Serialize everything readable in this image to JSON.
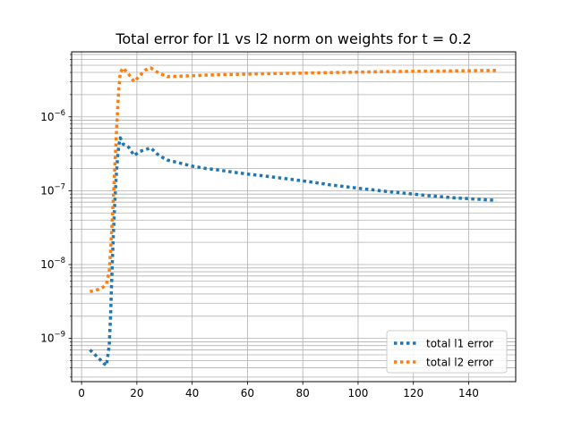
{
  "chart_data": {
    "type": "line",
    "title": "Total error for l1 vs l2 norm on weights for t = 0.2",
    "xlabel": "",
    "ylabel": "",
    "xlim": [
      -3.6,
      157
    ],
    "ylim": [
      2.6e-10,
      7.6e-06
    ],
    "yscale": "log",
    "grid": true,
    "grid_minor": true,
    "legend_position": "lower-right",
    "x_ticks": [
      0,
      20,
      40,
      60,
      80,
      100,
      120,
      140
    ],
    "x_tick_labels": [
      "0",
      "20",
      "40",
      "60",
      "80",
      "100",
      "120",
      "140"
    ],
    "y_ticks": [
      1e-09,
      1e-08,
      1e-07,
      1e-06
    ],
    "y_tick_labels": [
      {
        "base": "10",
        "exp": "−9"
      },
      {
        "base": "10",
        "exp": "−8"
      },
      {
        "base": "10",
        "exp": "−7"
      },
      {
        "base": "10",
        "exp": "−6"
      }
    ],
    "series": [
      {
        "name": "total l1 error",
        "color": "#1f77b4",
        "x": [
          3,
          6,
          8,
          9,
          10,
          10.5,
          11,
          11.5,
          12,
          12.5,
          13,
          13.5,
          14,
          15,
          17,
          19,
          21,
          23,
          25,
          28,
          31,
          35,
          40,
          45,
          50,
          55,
          60,
          65,
          70,
          75,
          80,
          85,
          90,
          95,
          100,
          105,
          110,
          115,
          120,
          125,
          130,
          135,
          140,
          145,
          150
        ],
        "y": [
          7e-10,
          5.5e-10,
          4.6e-10,
          4.3e-10,
          8e-10,
          2e-09,
          8e-09,
          2.5e-08,
          7e-08,
          1.5e-07,
          2.8e-07,
          4.2e-07,
          5.2e-07,
          4.3e-07,
          3.9e-07,
          3e-07,
          3.4e-07,
          3.6e-07,
          3.8e-07,
          3e-07,
          2.6e-07,
          2.4e-07,
          2.15e-07,
          2e-07,
          1.9e-07,
          1.78e-07,
          1.68e-07,
          1.6e-07,
          1.52e-07,
          1.44e-07,
          1.36e-07,
          1.28e-07,
          1.2e-07,
          1.14e-07,
          1.08e-07,
          1.03e-07,
          9.8e-08,
          9.4e-08,
          9e-08,
          8.6e-08,
          8.3e-08,
          8e-08,
          7.8e-08,
          7.6e-08,
          7.4e-08
        ]
      },
      {
        "name": "total l2 error",
        "color": "#ff7f0e",
        "x": [
          3,
          6,
          8,
          9,
          10,
          10.5,
          11,
          11.5,
          12,
          12.5,
          13,
          13.5,
          14,
          15,
          17,
          19,
          21,
          23,
          25,
          28,
          31,
          35,
          40,
          45,
          50,
          55,
          60,
          65,
          70,
          75,
          80,
          85,
          90,
          95,
          100,
          105,
          110,
          115,
          120,
          125,
          130,
          135,
          140,
          145,
          150
        ],
        "y": [
          4.3e-09,
          4.6e-09,
          5e-09,
          5.5e-09,
          8e-09,
          1.5e-08,
          3.5e-08,
          8e-08,
          2e-07,
          5e-07,
          1.2e-06,
          2.5e-06,
          4e-06,
          4.6e-06,
          3.8e-06,
          3e-06,
          3.6e-06,
          4.3e-06,
          4.6e-06,
          3.9e-06,
          3.5e-06,
          3.55e-06,
          3.6e-06,
          3.68e-06,
          3.72e-06,
          3.76e-06,
          3.8e-06,
          3.83e-06,
          3.86e-06,
          3.89e-06,
          3.92e-06,
          3.95e-06,
          3.98e-06,
          4.01e-06,
          4.04e-06,
          4.07e-06,
          4.1e-06,
          4.12e-06,
          4.14e-06,
          4.16e-06,
          4.18e-06,
          4.2e-06,
          4.22e-06,
          4.24e-06,
          4.26e-06
        ]
      }
    ]
  }
}
